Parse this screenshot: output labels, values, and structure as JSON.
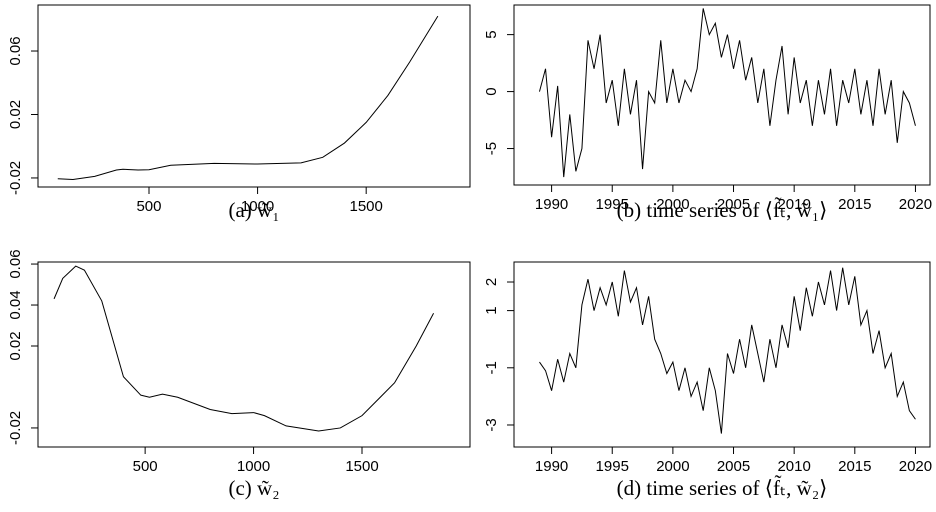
{
  "chart_data": [
    {
      "type": "line",
      "caption": "(a) w̃₁",
      "x": [
        80,
        150,
        250,
        350,
        380,
        450,
        500,
        600,
        800,
        1000,
        1200,
        1300,
        1400,
        1500,
        1600,
        1700,
        1830
      ],
      "values": [
        -0.0205,
        -0.021,
        -0.019,
        -0.015,
        -0.0145,
        -0.015,
        -0.0148,
        -0.012,
        -0.0108,
        -0.0112,
        -0.0105,
        -0.007,
        0.002,
        0.015,
        0.032,
        0.053,
        0.082
      ],
      "color": "#000000",
      "xlim": [
        -11,
        1978
      ],
      "ylim": [
        -0.0257,
        0.089
      ],
      "xticks": [
        500,
        1000,
        1500
      ],
      "yticks": [
        -0.02,
        0.02,
        0.06
      ]
    },
    {
      "type": "line",
      "caption": "(b) time series of ⟨f̃ₜ, w̃₁⟩",
      "x": [
        1989,
        1989.5,
        1990,
        1990.5,
        1991,
        1991.5,
        1992,
        1992.5,
        1993,
        1993.5,
        1994,
        1994.5,
        1995,
        1995.5,
        1996,
        1996.5,
        1997,
        1997.5,
        1998,
        1998.5,
        1999,
        1999.5,
        2000,
        2000.5,
        2001,
        2001.5,
        2002,
        2002.5,
        2003,
        2003.5,
        2004,
        2004.5,
        2005,
        2005.5,
        2006,
        2006.5,
        2007,
        2007.5,
        2008,
        2008.5,
        2009,
        2009.5,
        2010,
        2010.5,
        2011,
        2011.5,
        2012,
        2012.5,
        2013,
        2013.5,
        2014,
        2014.5,
        2015,
        2015.5,
        2016,
        2016.5,
        2017,
        2017.5,
        2018,
        2018.5,
        2019,
        2019.5,
        2020
      ],
      "values": [
        0,
        2,
        -4,
        0.5,
        -7.5,
        -2,
        -7,
        -5,
        4.5,
        2,
        5,
        -1,
        1,
        -3,
        2,
        -2,
        1,
        -6.8,
        0,
        -1,
        4.5,
        -1,
        2,
        -1,
        1,
        0,
        2,
        7.3,
        5,
        6,
        3,
        5,
        2,
        4.5,
        1,
        3,
        -1,
        2,
        -3,
        1,
        4,
        -2,
        3,
        -1,
        1,
        -3,
        1,
        -2,
        2,
        -3,
        1,
        -1,
        2,
        -2,
        1,
        -3,
        2,
        -2,
        1,
        -4.5,
        0,
        -1,
        -3
      ],
      "color": "#000000",
      "xlim": [
        1986.9,
        2021.2
      ],
      "ylim": [
        -8.2,
        7.6
      ],
      "xticks": [
        1990,
        1995,
        2000,
        2005,
        2010,
        2015,
        2020
      ],
      "yticks": [
        -5,
        0,
        5
      ]
    },
    {
      "type": "line",
      "caption": "(c) w̃₂",
      "x": [
        80,
        120,
        180,
        220,
        300,
        400,
        480,
        520,
        580,
        650,
        800,
        900,
        1000,
        1050,
        1150,
        1300,
        1400,
        1500,
        1650,
        1750,
        1830
      ],
      "values": [
        0.043,
        0.053,
        0.059,
        0.057,
        0.042,
        0.005,
        -0.004,
        -0.005,
        -0.0035,
        -0.005,
        -0.011,
        -0.013,
        -0.0125,
        -0.014,
        -0.019,
        -0.0215,
        -0.02,
        -0.014,
        0.002,
        0.02,
        0.036
      ],
      "color": "#000000",
      "xlim": [
        6,
        1998
      ],
      "ylim": [
        -0.0293,
        0.061
      ],
      "xticks": [
        500,
        1000,
        1500
      ],
      "yticks": [
        -0.02,
        0.02,
        0.04,
        0.06
      ]
    },
    {
      "type": "line",
      "caption": "(d) time series of ⟨f̃ₜ, w̃₂⟩",
      "x": [
        1989,
        1989.5,
        1990,
        1990.5,
        1991,
        1991.5,
        1992,
        1992.5,
        1993,
        1993.5,
        1994,
        1994.5,
        1995,
        1995.5,
        1996,
        1996.5,
        1997,
        1997.5,
        1998,
        1998.5,
        1999,
        1999.5,
        2000,
        2000.5,
        2001,
        2001.5,
        2002,
        2002.5,
        2003,
        2003.5,
        2004,
        2004.5,
        2005,
        2005.5,
        2006,
        2006.5,
        2007,
        2007.5,
        2008,
        2008.5,
        2009,
        2009.5,
        2010,
        2010.5,
        2011,
        2011.5,
        2012,
        2012.5,
        2013,
        2013.5,
        2014,
        2014.5,
        2015,
        2015.5,
        2016,
        2016.5,
        2017,
        2017.5,
        2018,
        2018.5,
        2019,
        2019.5,
        2020
      ],
      "values": [
        -0.8,
        -1.1,
        -1.8,
        -0.7,
        -1.5,
        -0.5,
        -1,
        1.2,
        2.1,
        1,
        1.8,
        1.2,
        2,
        0.8,
        2.4,
        1.3,
        1.8,
        0.5,
        1.5,
        0,
        -0.5,
        -1.2,
        -0.8,
        -1.8,
        -1,
        -2,
        -1.5,
        -2.5,
        -1,
        -1.8,
        -3.3,
        -0.5,
        -1.2,
        0,
        -1,
        0.5,
        -0.5,
        -1.5,
        0,
        -1,
        0.5,
        -0.3,
        1.5,
        0.3,
        1.8,
        0.8,
        2,
        1.2,
        2.4,
        1,
        2.5,
        1.2,
        2.2,
        0.5,
        1,
        -0.5,
        0.3,
        -1,
        -0.5,
        -2,
        -1.5,
        -2.5,
        -2.8
      ],
      "color": "#000000",
      "xlim": [
        1986.9,
        2021.2
      ],
      "ylim": [
        -3.77,
        2.7
      ],
      "xticks": [
        1990,
        1995,
        2000,
        2005,
        2010,
        2015,
        2020
      ],
      "yticks": [
        -3,
        -1,
        1,
        2
      ]
    }
  ]
}
